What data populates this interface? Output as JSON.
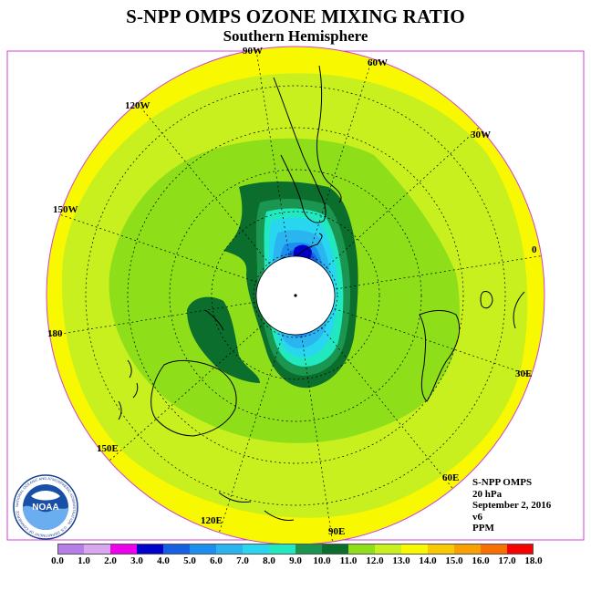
{
  "title": "S-NPP OMPS OZONE MIXING RATIO",
  "subtitle": "Southern Hemisphere",
  "longitude_labels": {
    "90W": "90W",
    "60W": "60W",
    "30W": "30W",
    "0": "0",
    "30E": "30E",
    "60E": "60E",
    "90E": "90E",
    "120E": "120E",
    "150E": "150E",
    "180": "180",
    "150W": "150W",
    "120W": "120W"
  },
  "info": {
    "instrument": "S-NPP OMPS",
    "level": "20 hPa",
    "date": "September 2, 2016",
    "version": "v6",
    "units": "PPM"
  },
  "logo": {
    "text": "NOAA",
    "ring_text": "NATIONAL OCEANIC AND ATMOSPHERIC ADMINISTRATION · U.S. DEPARTMENT OF COMMERCE"
  },
  "colorbar": {
    "ticks": [
      "0.0",
      "1.0",
      "2.0",
      "3.0",
      "4.0",
      "5.0",
      "6.0",
      "7.0",
      "8.0",
      "9.0",
      "10.0",
      "11.0",
      "12.0",
      "13.0",
      "14.0",
      "15.0",
      "16.0",
      "17.0",
      "18.0"
    ],
    "colors": [
      "#b57ee8",
      "#d9a6f0",
      "#ee00ee",
      "#0000cc",
      "#1560e0",
      "#1a8ff0",
      "#2ab4f0",
      "#28d6f0",
      "#22e8c0",
      "#1a9650",
      "#0c6e2c",
      "#8ede1a",
      "#c8f01e",
      "#f8f800",
      "#f8c800",
      "#f8a000",
      "#f87000",
      "#f80000",
      "#8b5a3c"
    ]
  }
}
